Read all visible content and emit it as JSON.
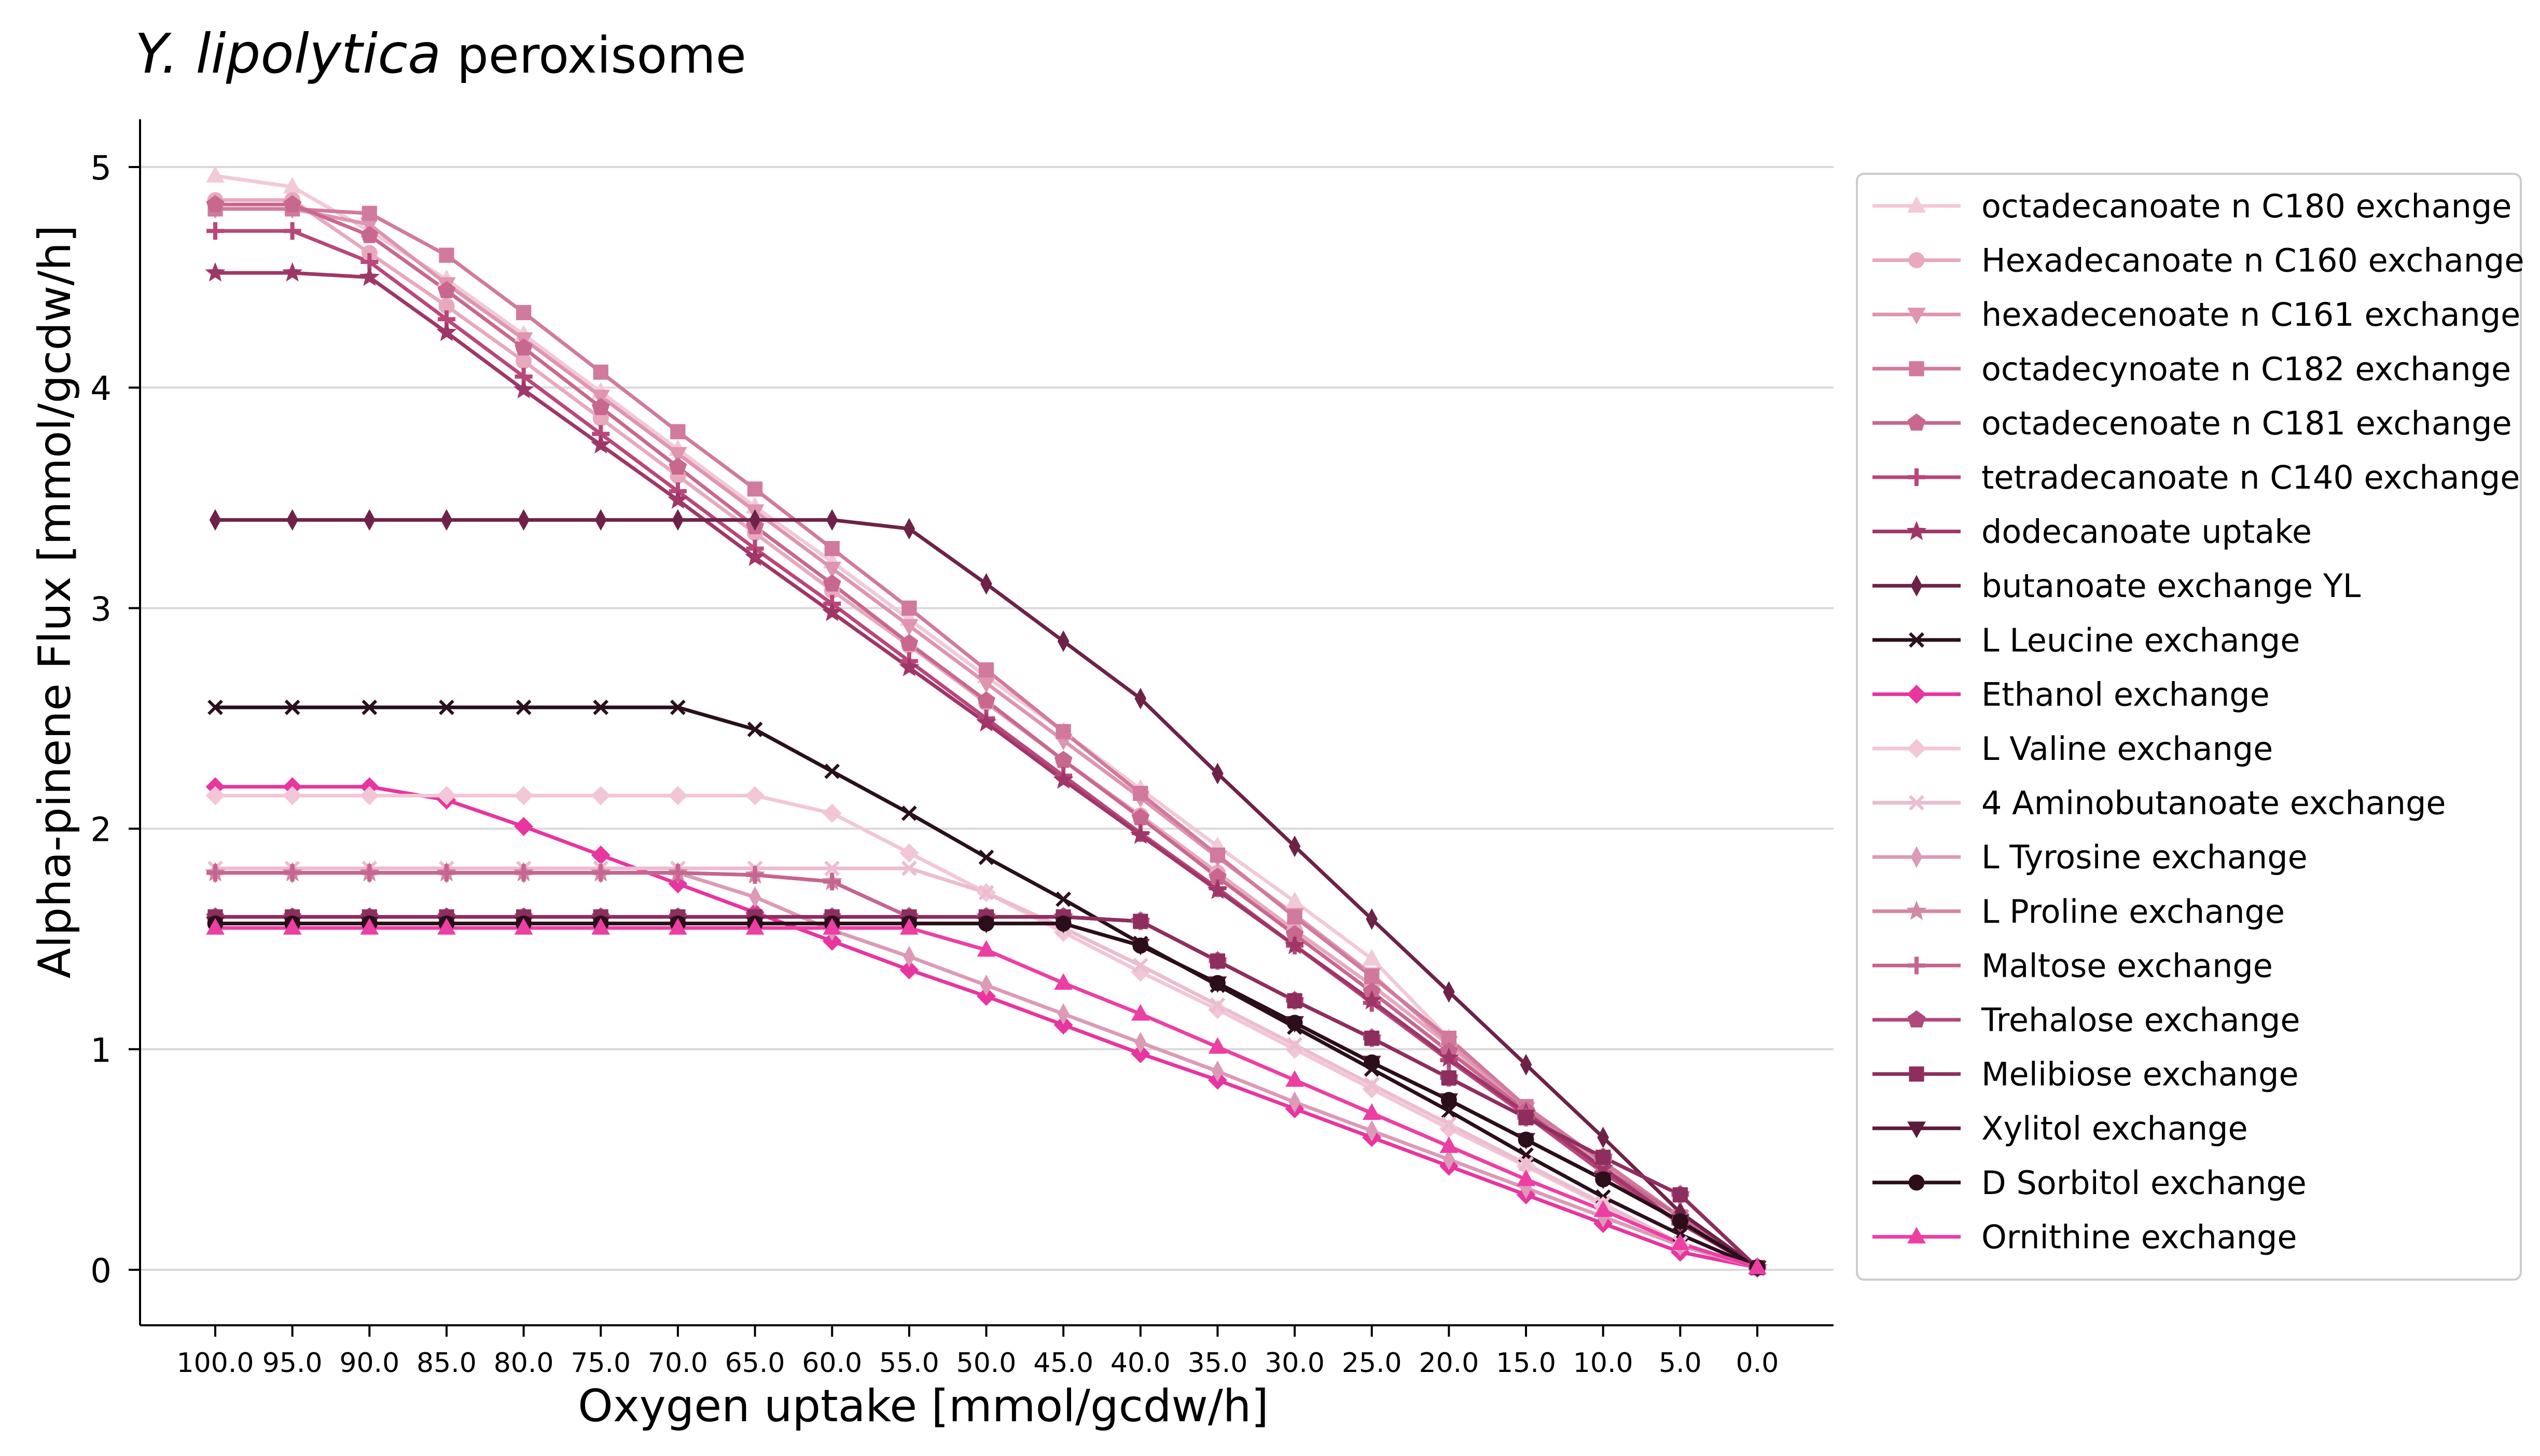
{
  "chart_data": {
    "type": "line",
    "title_italic": "Y. lipolytica",
    "title_rest": " peroxisome",
    "xlabel": "Oxygen uptake [mmol/gcdw/h]",
    "ylabel": "Alpha-pinene Flux [mmol/gcdw/h]",
    "x": [
      "100.0",
      "95.0",
      "90.0",
      "85.0",
      "80.0",
      "75.0",
      "70.0",
      "65.0",
      "60.0",
      "55.0",
      "50.0",
      "45.0",
      "40.0",
      "35.0",
      "30.0",
      "25.0",
      "20.0",
      "15.0",
      "10.0",
      "5.0",
      "0.0"
    ],
    "ylim": [
      -0.24,
      5.2
    ],
    "yticks": [
      "0",
      "1",
      "2",
      "3",
      "4",
      "5"
    ],
    "grid": "horizontal",
    "legend_position": "right",
    "series": [
      {
        "name": "octadecanoate n C180 exchange",
        "color": "#f2c9d6",
        "marker": "triangle-up",
        "values": [
          4.96,
          4.91,
          4.71,
          4.49,
          4.24,
          3.98,
          3.72,
          3.46,
          3.21,
          2.95,
          2.69,
          2.44,
          2.18,
          1.92,
          1.67,
          1.41,
          1.05,
          0.73,
          0.46,
          0.24,
          0.01
        ]
      },
      {
        "name": "Hexadecanoate n C160 exchange",
        "color": "#e8a9bd",
        "marker": "circle",
        "values": [
          4.85,
          4.85,
          4.61,
          4.37,
          4.12,
          3.86,
          3.6,
          3.34,
          3.08,
          2.83,
          2.57,
          2.31,
          2.06,
          1.8,
          1.54,
          1.29,
          1.02,
          0.71,
          0.46,
          0.24,
          0.01
        ]
      },
      {
        "name": "hexadecenoate n C161 exchange",
        "color": "#df94b0",
        "marker": "triangle-down",
        "values": [
          4.81,
          4.81,
          4.74,
          4.47,
          4.22,
          3.96,
          3.7,
          3.44,
          3.18,
          2.92,
          2.66,
          2.4,
          2.14,
          1.87,
          1.61,
          1.34,
          1.03,
          0.73,
          0.47,
          0.24,
          0.01
        ]
      },
      {
        "name": "octadecynoate n C182 exchange",
        "color": "#d17a9d",
        "marker": "square",
        "values": [
          4.81,
          4.81,
          4.79,
          4.6,
          4.34,
          4.07,
          3.8,
          3.54,
          3.27,
          3.0,
          2.72,
          2.44,
          2.16,
          1.88,
          1.6,
          1.33,
          1.05,
          0.74,
          0.49,
          0.24,
          0.01
        ]
      },
      {
        "name": "octadecenoate n C181 exchange",
        "color": "#c8688f",
        "marker": "pentagon",
        "values": [
          4.83,
          4.83,
          4.69,
          4.44,
          4.18,
          3.91,
          3.64,
          3.37,
          3.11,
          2.84,
          2.58,
          2.31,
          2.05,
          1.78,
          1.52,
          1.26,
          0.99,
          0.72,
          0.46,
          0.24,
          0.01
        ]
      },
      {
        "name": "tetradecanoate n C140 exchange",
        "color": "#b9477a",
        "marker": "plus",
        "values": [
          4.71,
          4.71,
          4.57,
          4.31,
          4.05,
          3.79,
          3.53,
          3.27,
          3.02,
          2.76,
          2.5,
          2.24,
          1.98,
          1.73,
          1.47,
          1.21,
          0.95,
          0.7,
          0.44,
          0.21,
          0.01
        ]
      },
      {
        "name": "dodecanoate uptake",
        "color": "#9f3668",
        "marker": "star",
        "values": [
          4.52,
          4.52,
          4.5,
          4.25,
          3.99,
          3.74,
          3.49,
          3.23,
          2.98,
          2.73,
          2.48,
          2.22,
          1.97,
          1.72,
          1.47,
          1.22,
          0.96,
          0.71,
          0.46,
          0.21,
          0.01
        ]
      },
      {
        "name": "butanoate exchange YL",
        "color": "#6e2247",
        "marker": "thin-diamond",
        "values": [
          3.4,
          3.4,
          3.4,
          3.4,
          3.4,
          3.4,
          3.4,
          3.4,
          3.4,
          3.36,
          3.11,
          2.85,
          2.59,
          2.25,
          1.92,
          1.59,
          1.26,
          0.93,
          0.6,
          0.26,
          0.01
        ]
      },
      {
        "name": "L Leucine exchange",
        "color": "#2a0f1d",
        "marker": "x",
        "values": [
          2.55,
          2.55,
          2.55,
          2.55,
          2.55,
          2.55,
          2.55,
          2.45,
          2.26,
          2.07,
          1.87,
          1.68,
          1.48,
          1.29,
          1.1,
          0.91,
          0.72,
          0.52,
          0.33,
          0.16,
          0.01
        ]
      },
      {
        "name": "Ethanol exchange",
        "color": "#e8359f",
        "marker": "diamond",
        "values": [
          2.19,
          2.19,
          2.19,
          2.13,
          2.01,
          1.88,
          1.75,
          1.62,
          1.49,
          1.36,
          1.24,
          1.11,
          0.98,
          0.86,
          0.73,
          0.6,
          0.47,
          0.34,
          0.21,
          0.08,
          0.01
        ]
      },
      {
        "name": "L Valine exchange",
        "color": "#f2c6d6",
        "marker": "diamond",
        "values": [
          2.15,
          2.15,
          2.15,
          2.15,
          2.15,
          2.15,
          2.15,
          2.15,
          2.07,
          1.89,
          1.71,
          1.53,
          1.35,
          1.18,
          1.0,
          0.82,
          0.64,
          0.47,
          0.29,
          0.11,
          0.01
        ]
      },
      {
        "name": "4 Aminobutanoate exchange",
        "color": "#ecbcd0",
        "marker": "x",
        "values": [
          1.82,
          1.82,
          1.82,
          1.82,
          1.82,
          1.82,
          1.82,
          1.82,
          1.82,
          1.82,
          1.71,
          1.55,
          1.38,
          1.2,
          1.02,
          0.84,
          0.66,
          0.48,
          0.3,
          0.12,
          0.01
        ]
      },
      {
        "name": "L Tyrosine exchange",
        "color": "#dc9ab6",
        "marker": "thin-diamond",
        "values": [
          1.8,
          1.8,
          1.8,
          1.8,
          1.8,
          1.8,
          1.8,
          1.69,
          1.54,
          1.42,
          1.29,
          1.16,
          1.03,
          0.9,
          0.76,
          0.63,
          0.5,
          0.37,
          0.24,
          0.11,
          0.01
        ]
      },
      {
        "name": "L Proline exchange",
        "color": "#d388a6",
        "marker": "star",
        "values": [
          1.8,
          1.8,
          1.8,
          1.8,
          1.8,
          1.8,
          1.8,
          1.79,
          1.76,
          1.6,
          1.6,
          1.6,
          1.58,
          1.4,
          1.22,
          1.05,
          0.87,
          0.69,
          0.51,
          0.34,
          0.01
        ]
      },
      {
        "name": "Maltose exchange",
        "color": "#c56590",
        "marker": "plus",
        "values": [
          1.8,
          1.8,
          1.8,
          1.8,
          1.8,
          1.8,
          1.8,
          1.79,
          1.76,
          1.6,
          1.6,
          1.6,
          1.58,
          1.4,
          1.22,
          1.05,
          0.87,
          0.69,
          0.51,
          0.34,
          0.01
        ]
      },
      {
        "name": "Trehalose exchange",
        "color": "#b0477d",
        "marker": "pentagon",
        "values": [
          1.6,
          1.6,
          1.6,
          1.6,
          1.6,
          1.6,
          1.6,
          1.6,
          1.6,
          1.6,
          1.6,
          1.6,
          1.58,
          1.4,
          1.22,
          1.05,
          0.87,
          0.69,
          0.51,
          0.34,
          0.01
        ]
      },
      {
        "name": "Melibiose exchange",
        "color": "#8e2e5f",
        "marker": "square",
        "values": [
          1.6,
          1.6,
          1.6,
          1.6,
          1.6,
          1.6,
          1.6,
          1.6,
          1.6,
          1.6,
          1.6,
          1.6,
          1.58,
          1.4,
          1.22,
          1.05,
          0.87,
          0.69,
          0.51,
          0.34,
          0.01
        ]
      },
      {
        "name": "Xylitol exchange",
        "color": "#5c1b3a",
        "marker": "triangle-down",
        "values": [
          1.57,
          1.57,
          1.57,
          1.57,
          1.57,
          1.57,
          1.57,
          1.57,
          1.57,
          1.57,
          1.57,
          1.57,
          1.47,
          1.3,
          1.12,
          0.94,
          0.77,
          0.59,
          0.41,
          0.22,
          0.01
        ]
      },
      {
        "name": "D Sorbitol exchange",
        "color": "#2b0e1a",
        "marker": "circle",
        "values": [
          1.57,
          1.57,
          1.57,
          1.57,
          1.57,
          1.57,
          1.57,
          1.57,
          1.57,
          1.57,
          1.57,
          1.57,
          1.47,
          1.3,
          1.12,
          0.94,
          0.77,
          0.59,
          0.41,
          0.22,
          0.01
        ]
      },
      {
        "name": "Ornithine exchange",
        "color": "#ec3fa4",
        "marker": "triangle-up",
        "values": [
          1.55,
          1.55,
          1.55,
          1.55,
          1.55,
          1.55,
          1.55,
          1.55,
          1.55,
          1.55,
          1.45,
          1.3,
          1.16,
          1.01,
          0.86,
          0.71,
          0.56,
          0.41,
          0.27,
          0.12,
          0.01
        ]
      }
    ]
  }
}
